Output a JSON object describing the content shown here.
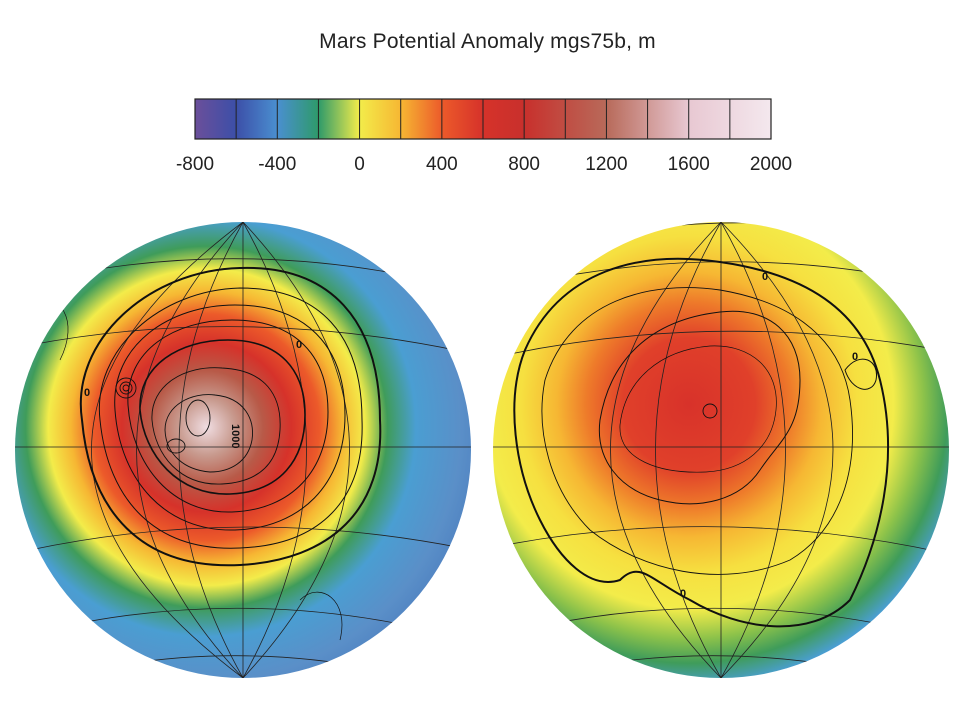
{
  "title": "Mars Potential Anomaly mgs75b, m",
  "colorbar": {
    "min": -800,
    "max": 2000,
    "tick_labels": [
      "-800",
      "-400",
      "0",
      "400",
      "800",
      "1200",
      "1600",
      "2000"
    ],
    "stops": [
      {
        "value": -800,
        "color": "#6b4f9a"
      },
      {
        "value": -600,
        "color": "#3c4fa8"
      },
      {
        "value": -400,
        "color": "#4a8fd0"
      },
      {
        "value": -200,
        "color": "#2e9a6a"
      },
      {
        "value": 0,
        "color": "#f3ec4a"
      },
      {
        "value": 200,
        "color": "#f6b733"
      },
      {
        "value": 400,
        "color": "#ec5a2a"
      },
      {
        "value": 600,
        "color": "#d6322a"
      },
      {
        "value": 800,
        "color": "#c8302c"
      },
      {
        "value": 1200,
        "color": "#b86a5a"
      },
      {
        "value": 1600,
        "color": "#e8c8d2"
      },
      {
        "value": 2000,
        "color": "#f4e8ee"
      }
    ]
  },
  "hemispheres": [
    {
      "name": "left",
      "contour_labels": [
        "0",
        "0",
        "1000"
      ]
    },
    {
      "name": "right",
      "contour_labels": [
        "0",
        "0",
        "0"
      ]
    }
  ]
}
